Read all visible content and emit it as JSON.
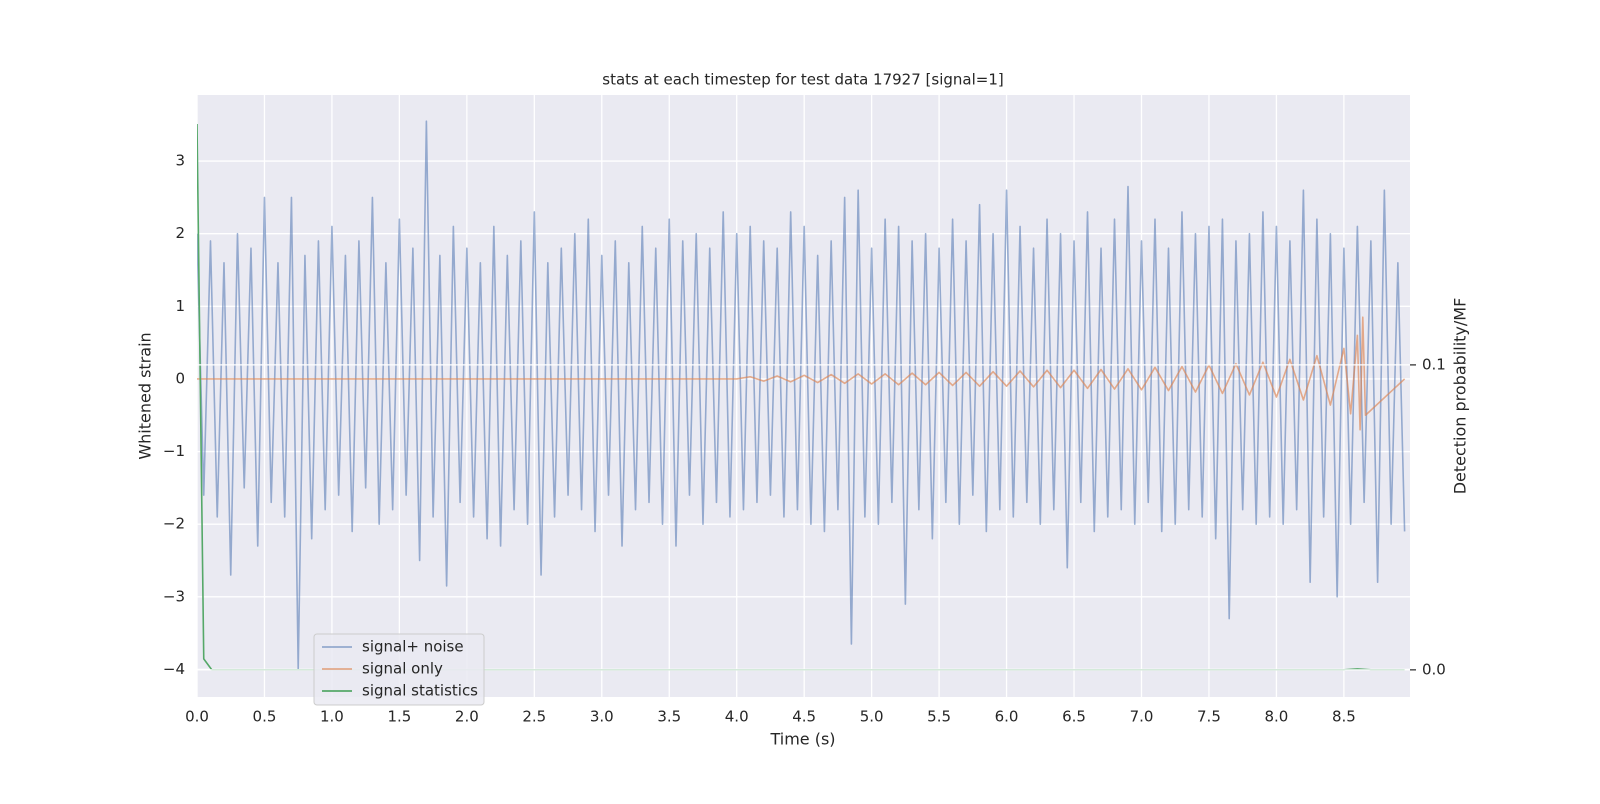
{
  "chart_data": {
    "type": "line",
    "title": "stats at each timestep for test data 17927 [signal=1]",
    "x_label": "Time (s)",
    "y_label": "Whitened strain",
    "y2_label": "Detection probability/MF",
    "xlim": [
      0,
      8.99
    ],
    "ylim": [
      -4.38,
      3.91
    ],
    "y2lim": [
      -0.0089,
      0.1885
    ],
    "xticks": [
      {
        "value": 0,
        "label": "0.0"
      },
      0.5,
      {
        "value": 1,
        "label": "1.0"
      },
      1.5,
      {
        "value": 2,
        "label": "2.0"
      },
      2.5,
      {
        "value": 3,
        "label": "3.0"
      },
      3.5,
      {
        "value": 4,
        "label": "4.0"
      },
      4.5,
      {
        "value": 5,
        "label": "5.0"
      },
      5.5,
      {
        "value": 6,
        "label": "6.0"
      },
      6.5,
      {
        "value": 7,
        "label": "7.0"
      },
      7.5,
      {
        "value": 8,
        "label": "8.0"
      },
      8.5
    ],
    "yticks": [
      {
        "value": -4,
        "label": "−4"
      },
      {
        "value": -3,
        "label": "−3"
      },
      {
        "value": -2,
        "label": "−2"
      },
      {
        "value": -1,
        "label": "−1"
      },
      0,
      1,
      2,
      3
    ],
    "y2ticks": [
      {
        "value": 0,
        "label": "0.0"
      },
      0.1
    ],
    "grid": true,
    "legend": "lower left",
    "series": [
      {
        "name": "signal+ noise",
        "color": "#4c72b0",
        "opacity": 0.55,
        "x": [
          0,
          0.05,
          0.1,
          0.15,
          0.2,
          0.25,
          0.3,
          0.35,
          0.4,
          0.45,
          0.5,
          0.55,
          0.6,
          0.65,
          0.7,
          0.75,
          0.8,
          0.85,
          0.9,
          0.95,
          1,
          1.05,
          1.1,
          1.15,
          1.2,
          1.25,
          1.3,
          1.35,
          1.4,
          1.45,
          1.5,
          1.55,
          1.6,
          1.65,
          1.7,
          1.75,
          1.8,
          1.85,
          1.9,
          1.95,
          2,
          2.05,
          2.1,
          2.15,
          2.2,
          2.25,
          2.3,
          2.35,
          2.4,
          2.45,
          2.5,
          2.55,
          2.6,
          2.65,
          2.7,
          2.75,
          2.8,
          2.85,
          2.9,
          2.95,
          3,
          3.05,
          3.1,
          3.15,
          3.2,
          3.25,
          3.3,
          3.35,
          3.4,
          3.45,
          3.5,
          3.55,
          3.6,
          3.65,
          3.7,
          3.75,
          3.8,
          3.85,
          3.9,
          3.95,
          4,
          4.05,
          4.1,
          4.15,
          4.2,
          4.25,
          4.3,
          4.35,
          4.4,
          4.45,
          4.5,
          4.55,
          4.6,
          4.65,
          4.7,
          4.75,
          4.8,
          4.85,
          4.9,
          4.95,
          5,
          5.05,
          5.1,
          5.15,
          5.2,
          5.25,
          5.3,
          5.35,
          5.4,
          5.45,
          5.5,
          5.55,
          5.6,
          5.65,
          5.7,
          5.75,
          5.8,
          5.85,
          5.9,
          5.95,
          6,
          6.05,
          6.1,
          6.15,
          6.2,
          6.25,
          6.3,
          6.35,
          6.4,
          6.45,
          6.5,
          6.55,
          6.6,
          6.65,
          6.7,
          6.75,
          6.8,
          6.85,
          6.9,
          6.95,
          7,
          7.05,
          7.1,
          7.15,
          7.2,
          7.25,
          7.3,
          7.35,
          7.4,
          7.45,
          7.5,
          7.55,
          7.6,
          7.65,
          7.7,
          7.75,
          7.8,
          7.85,
          7.9,
          7.95,
          8,
          8.05,
          8.1,
          8.15,
          8.2,
          8.25,
          8.3,
          8.35,
          8.4,
          8.45,
          8.5,
          8.55,
          8.6,
          8.65,
          8.7,
          8.75,
          8.8,
          8.85,
          8.9,
          8.95
        ],
        "values": [
          2.0,
          -1.6,
          1.9,
          -1.9,
          1.6,
          -2.7,
          2.0,
          -1.5,
          1.8,
          -2.3,
          2.5,
          -1.7,
          1.6,
          -1.9,
          2.5,
          -4.0,
          1.7,
          -2.2,
          1.9,
          -1.8,
          2.1,
          -1.6,
          1.7,
          -2.1,
          1.9,
          -1.5,
          2.5,
          -2.0,
          1.6,
          -1.8,
          2.2,
          -1.6,
          1.8,
          -2.5,
          3.55,
          -1.9,
          1.7,
          -2.85,
          2.1,
          -1.7,
          1.8,
          -1.9,
          1.6,
          -2.2,
          2.1,
          -2.3,
          1.7,
          -1.8,
          1.9,
          -2.0,
          2.3,
          -2.7,
          1.6,
          -1.9,
          1.8,
          -1.6,
          2.0,
          -1.8,
          2.2,
          -2.1,
          1.7,
          -1.6,
          1.9,
          -2.3,
          1.6,
          -1.8,
          2.1,
          -1.7,
          1.8,
          -2.0,
          2.2,
          -2.3,
          1.9,
          -1.6,
          2.0,
          -2.0,
          1.8,
          -1.7,
          2.3,
          -1.9,
          2.0,
          -1.8,
          2.1,
          -1.7,
          1.9,
          -1.6,
          1.8,
          -1.9,
          2.3,
          -1.8,
          2.1,
          -2.0,
          1.7,
          -2.1,
          1.9,
          -1.8,
          2.5,
          -3.65,
          2.6,
          -1.9,
          1.8,
          -2.0,
          2.2,
          -1.7,
          2.1,
          -3.1,
          1.9,
          -1.8,
          2.0,
          -2.2,
          1.8,
          -1.7,
          2.2,
          -2.0,
          1.9,
          -1.6,
          2.4,
          -2.1,
          2.0,
          -1.8,
          2.6,
          -1.9,
          2.1,
          -1.7,
          1.8,
          -2.0,
          2.2,
          -1.8,
          2.0,
          -2.6,
          1.9,
          -1.7,
          2.3,
          -2.1,
          1.8,
          -1.9,
          2.2,
          -1.8,
          2.65,
          -2.0,
          1.9,
          -1.7,
          2.2,
          -2.1,
          1.8,
          -2.0,
          2.3,
          -1.8,
          2.0,
          -1.9,
          2.1,
          -2.2,
          2.2,
          -3.3,
          1.9,
          -1.8,
          2.0,
          -2.0,
          2.3,
          -1.9,
          2.1,
          -2.0,
          1.9,
          -1.8,
          2.6,
          -2.8,
          2.2,
          -1.9,
          2.0,
          -3.0,
          1.8,
          -2.0,
          2.1,
          -1.7,
          1.9,
          -2.8,
          2.6,
          -2.0,
          1.6,
          -2.1
        ]
      },
      {
        "name": "signal only",
        "color": "#dd8452",
        "opacity": 0.65,
        "x": [
          0,
          4.0,
          4.1,
          4.2,
          4.3,
          4.4,
          4.5,
          4.6,
          4.7,
          4.8,
          4.9,
          5.0,
          5.1,
          5.2,
          5.3,
          5.4,
          5.5,
          5.6,
          5.7,
          5.8,
          5.9,
          6.0,
          6.1,
          6.2,
          6.3,
          6.4,
          6.5,
          6.6,
          6.7,
          6.8,
          6.9,
          7.0,
          7.1,
          7.2,
          7.3,
          7.4,
          7.5,
          7.6,
          7.7,
          7.8,
          7.9,
          8.0,
          8.1,
          8.2,
          8.3,
          8.4,
          8.5,
          8.55,
          8.6,
          8.62,
          8.64,
          8.66,
          8.95
        ],
        "values": [
          0,
          0,
          0.03,
          -0.03,
          0.04,
          -0.04,
          0.05,
          -0.05,
          0.06,
          -0.06,
          0.07,
          -0.07,
          0.07,
          -0.08,
          0.08,
          -0.08,
          0.09,
          -0.09,
          0.09,
          -0.1,
          0.1,
          -0.1,
          0.11,
          -0.11,
          0.12,
          -0.12,
          0.12,
          -0.13,
          0.13,
          -0.14,
          0.14,
          -0.15,
          0.16,
          -0.16,
          0.17,
          -0.18,
          0.19,
          -0.2,
          0.21,
          -0.22,
          0.23,
          -0.25,
          0.27,
          -0.29,
          0.32,
          -0.36,
          0.42,
          -0.48,
          0.6,
          -0.7,
          0.85,
          -0.5,
          0
        ]
      },
      {
        "name": "signal statistics",
        "color": "#55a868",
        "opacity": 1,
        "axis": "y2",
        "x": [
          0,
          0.05,
          0.11,
          8.5,
          8.6,
          8.7,
          8.95
        ],
        "values": [
          0.179,
          0.0036,
          0,
          0,
          0.0003,
          0,
          0
        ]
      }
    ]
  }
}
